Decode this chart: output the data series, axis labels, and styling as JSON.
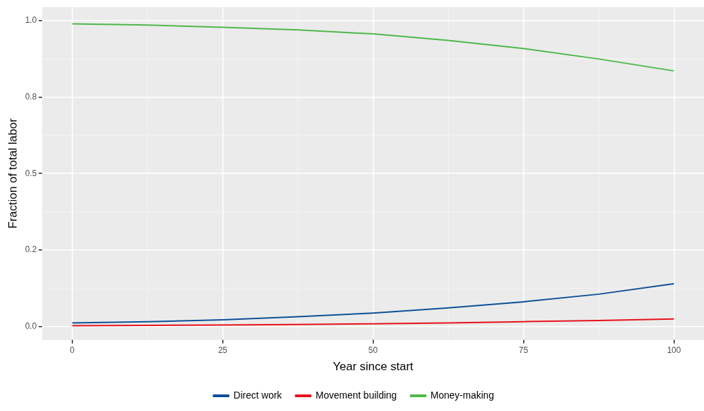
{
  "chart_data": {
    "type": "line",
    "xlabel": "Year since start",
    "ylabel": "Fraction of total labor",
    "x": [
      0,
      12.5,
      25,
      37.5,
      50,
      62.5,
      75,
      87.5,
      100
    ],
    "series": [
      {
        "name": "Direct work",
        "color": "#0b4f96",
        "values": [
          0.011,
          0.015,
          0.021,
          0.031,
          0.043,
          0.06,
          0.08,
          0.105,
          0.139
        ]
      },
      {
        "name": "Movement building",
        "color": "#e8101b",
        "values": [
          0.002,
          0.003,
          0.004,
          0.006,
          0.008,
          0.011,
          0.015,
          0.019,
          0.024
        ]
      },
      {
        "name": "Money-making",
        "color": "#4cb848",
        "values": [
          0.99,
          0.986,
          0.979,
          0.97,
          0.957,
          0.936,
          0.909,
          0.875,
          0.836
        ]
      }
    ],
    "xlim": [
      -5,
      105
    ],
    "xticks": [
      0,
      25,
      50,
      75,
      100
    ],
    "ylim": [
      -0.045,
      1.045
    ],
    "yticks": [
      {
        "value": 0,
        "label": "0.0"
      },
      {
        "value": 0.25,
        "label": "0.2"
      },
      {
        "value": 0.5,
        "label": "0.5"
      },
      {
        "value": 0.75,
        "label": "0.8"
      },
      {
        "value": 1,
        "label": "1.0"
      }
    ],
    "grid": true,
    "legend": "bottom",
    "marker": "none",
    "line_style": "solid"
  }
}
